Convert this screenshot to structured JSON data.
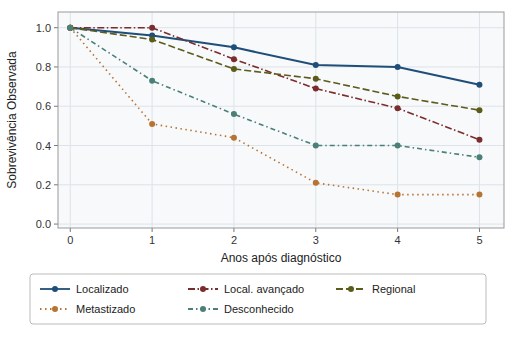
{
  "chart_data": {
    "type": "line",
    "xlabel": "Anos após diagnóstico",
    "ylabel": "Sobrevivência Observada",
    "x": [
      0,
      1,
      2,
      3,
      4,
      5
    ],
    "xlim": [
      -0.15,
      5.3
    ],
    "ylim": [
      -0.02,
      1.08
    ],
    "xticks": [
      0,
      1,
      2,
      3,
      4,
      5
    ],
    "yticks": [
      {
        "value": 0.0,
        "label": "0.0"
      },
      0.2,
      0.4,
      0.6,
      0.8,
      {
        "value": 1.0,
        "label": "1.0"
      }
    ],
    "grid": true,
    "legend": "bottom",
    "marker": "circle",
    "series": [
      {
        "name": "Localizado",
        "color": "#1f4e79",
        "line_style": "solid",
        "values": [
          1.0,
          0.96,
          0.9,
          0.81,
          0.8,
          0.71
        ]
      },
      {
        "name": "Local. avançado",
        "color": "#7b2c2c",
        "line_style": "dashdot_long",
        "values": [
          1.0,
          1.0,
          0.84,
          0.69,
          0.59,
          0.43
        ]
      },
      {
        "name": "Regional",
        "color": "#5c5c1a",
        "line_style": "dashed",
        "values": [
          1.0,
          0.94,
          0.79,
          0.74,
          0.65,
          0.58
        ]
      },
      {
        "name": "Metastizado",
        "color": "#b87333",
        "line_style": "loosely_dotted",
        "values": [
          1.0,
          0.51,
          0.44,
          0.21,
          0.15,
          0.15
        ]
      },
      {
        "name": "Desconhecido",
        "color": "#4a8078",
        "line_style": "dashdot_short",
        "values": [
          1.0,
          0.73,
          0.56,
          0.4,
          0.4,
          0.34
        ]
      }
    ]
  }
}
